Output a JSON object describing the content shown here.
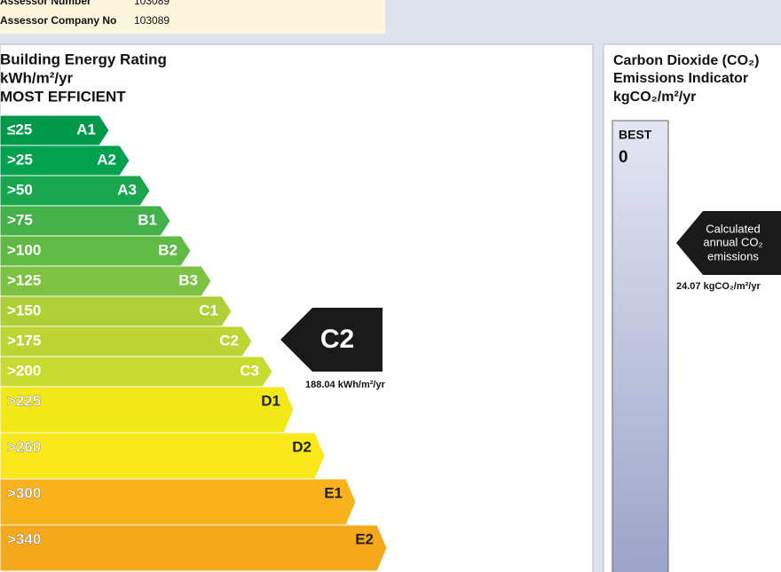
{
  "assessor": {
    "rows": [
      [
        "Assessor Number",
        "103089"
      ],
      [
        "Assessor Company No",
        "103089"
      ]
    ]
  },
  "energy_rating": {
    "title": [
      "Building Energy Rating",
      "kWh/m²/yr",
      "MOST EFFICIENT"
    ],
    "bands": [
      {
        "range": "≤25",
        "grade": "A1",
        "color": "#00994c"
      },
      {
        "range": ">25",
        "grade": "A2",
        "color": "#00a14f"
      },
      {
        "range": ">50",
        "grade": "A3",
        "color": "#1aa64e"
      },
      {
        "range": ">75",
        "grade": "B1",
        "color": "#44b14a"
      },
      {
        "range": ">100",
        "grade": "B2",
        "color": "#61ba46"
      },
      {
        "range": ">125",
        "grade": "B3",
        "color": "#7dc242"
      },
      {
        "range": ">150",
        "grade": "C1",
        "color": "#aecf38"
      },
      {
        "range": ">175",
        "grade": "C2",
        "color": "#bcd534"
      },
      {
        "range": ">200",
        "grade": "C3",
        "color": "#c8db30"
      },
      {
        "range": ">225",
        "grade": "D1",
        "color": "#f3e817"
      },
      {
        "range": ">260",
        "grade": "D2",
        "color": "#f9e81c"
      },
      {
        "range": ">300",
        "grade": "E1",
        "color": "#f8b21c"
      },
      {
        "range": ">340",
        "grade": "E2",
        "color": "#f5a81a"
      }
    ],
    "current": {
      "grade": "C2",
      "value": "188.04 kWh/m²/yr"
    }
  },
  "co2": {
    "title": [
      "Carbon Dioxide (CO₂)",
      "Emissions Indicator",
      "kgCO₂/m²/yr"
    ],
    "scale_top": "BEST",
    "scale_start": "0",
    "pointer": [
      "Calculated",
      "annual CO₂",
      "emissions"
    ],
    "value": "24.07 kgCO₂/m²/yr"
  }
}
